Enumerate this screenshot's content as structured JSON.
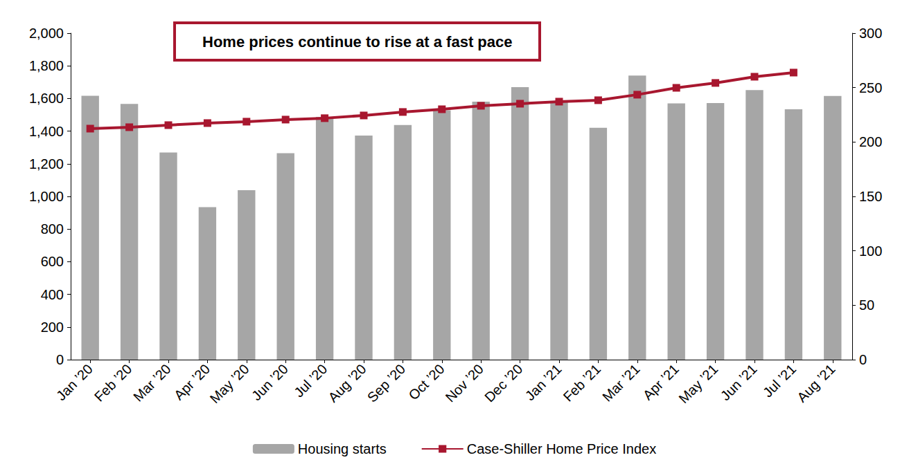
{
  "chart_data": {
    "type": "bar",
    "annotation": "Home prices continue to rise at a fast pace",
    "categories": [
      "Jan ’20",
      "Feb ’20",
      "Mar ’20",
      "Apr ’20",
      "May ’20",
      "Jun ’20",
      "Jul ’20",
      "Aug ’20",
      "Sep ’20",
      "Oct ’20",
      "Nov ’20",
      "Dec ’20",
      "Jan ’21",
      "Feb ’21",
      "Mar ’21",
      "Apr ’21",
      "May ’21",
      "Jun ’21",
      "Jul ’21",
      "Aug ’21"
    ],
    "series": [
      {
        "name": "Housing starts",
        "type": "bar",
        "color": "#a6a6a6",
        "values": [
          1617,
          1567,
          1269,
          934,
          1038,
          1265,
          1487,
          1373,
          1437,
          1528,
          1580,
          1669,
          1580,
          1421,
          1740,
          1570,
          1572,
          1652,
          1534,
          1615
        ]
      },
      {
        "name": "Case-Shiller Home Price Index",
        "type": "line",
        "axis": "y2",
        "color": "#a8172f",
        "marker": "square",
        "line_style": "solid",
        "values": [
          212.3,
          213.6,
          215.5,
          217.4,
          218.7,
          220.6,
          221.9,
          224.4,
          227.6,
          230.1,
          233.3,
          235.2,
          237.1,
          238.4,
          243.5,
          249.8,
          254.3,
          260.0,
          263.8,
          null
        ]
      }
    ],
    "ylim": [
      0,
      2000
    ],
    "yticks": [
      0,
      200,
      400,
      600,
      800,
      {
        "value": 1000,
        "label": "1,000"
      },
      {
        "value": 1200,
        "label": "1,200"
      },
      {
        "value": 1400,
        "label": "1,400"
      },
      {
        "value": 1600,
        "label": "1,600"
      },
      {
        "value": 1800,
        "label": "1,800"
      },
      {
        "value": 2000,
        "label": "2,000"
      }
    ],
    "y2lim": [
      0,
      300
    ],
    "y2ticks": [
      0,
      50,
      100,
      150,
      200,
      250,
      300
    ],
    "grid": false,
    "legend": "bottom"
  }
}
